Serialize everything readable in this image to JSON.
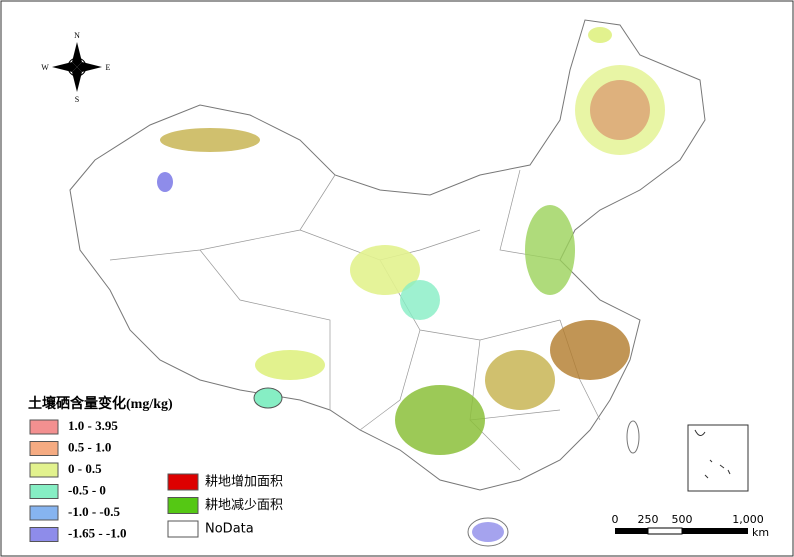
{
  "compass": {
    "north": "N",
    "east": "E",
    "south": "S",
    "west": "W"
  },
  "selenium_legend": {
    "title": "土壤硒含量变化(mg/kg)",
    "items": [
      {
        "label": "1.0 - 3.95",
        "color": "#f39090"
      },
      {
        "label": "0.5 - 1.0",
        "color": "#f5ab82"
      },
      {
        "label": "0 - 0.5",
        "color": "#e2f28e"
      },
      {
        "label": "-0.5 - 0",
        "color": "#86eec4"
      },
      {
        "label": "-1.0 - -0.5",
        "color": "#86b4f0"
      },
      {
        "label": "-1.65 - -1.0",
        "color": "#8e8cea"
      }
    ]
  },
  "land_legend": {
    "items": [
      {
        "label": "耕地增加面积",
        "color": "#dd0000"
      },
      {
        "label": "耕地减少面积",
        "color": "#55c814"
      },
      {
        "label": "NoData",
        "color": "#ffffff"
      }
    ]
  },
  "scale_bar": {
    "labels": [
      "0",
      "250",
      "500",
      "1,000"
    ],
    "unit": "km"
  }
}
